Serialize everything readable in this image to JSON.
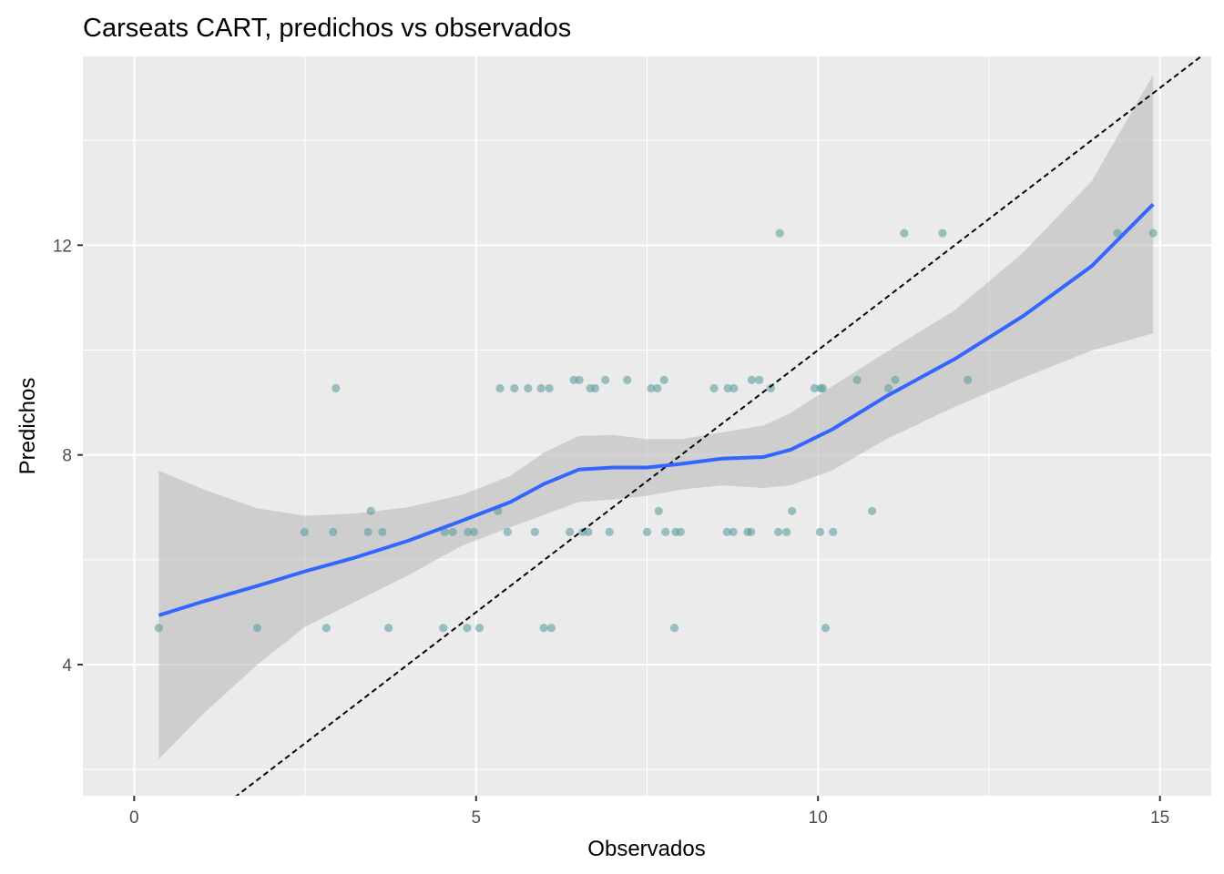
{
  "chart_data": {
    "type": "scatter",
    "title": "Carseats CART, predichos vs observados",
    "xlabel": "Observados",
    "ylabel": "Predichos",
    "xlim": [
      -0.75,
      15.75
    ],
    "ylim": [
      1.5,
      15.6
    ],
    "x_ticks": [
      0,
      5,
      10,
      15
    ],
    "y_ticks": [
      4,
      8,
      12
    ],
    "grid": true,
    "colors": {
      "panel": "#ebebeb",
      "grid": "#ffffff",
      "points": "#5f9ea0",
      "smooth_line": "#3366ff",
      "ribbon": "#bdbdbd",
      "reference_line": "#000000"
    },
    "points": [
      {
        "x": 0.36,
        "y": 4.7
      },
      {
        "x": 1.8,
        "y": 4.7
      },
      {
        "x": 2.81,
        "y": 4.7
      },
      {
        "x": 3.72,
        "y": 4.7
      },
      {
        "x": 4.52,
        "y": 4.7
      },
      {
        "x": 4.87,
        "y": 4.7
      },
      {
        "x": 5.05,
        "y": 4.7
      },
      {
        "x": 5.99,
        "y": 4.7
      },
      {
        "x": 6.1,
        "y": 4.7
      },
      {
        "x": 7.9,
        "y": 4.7
      },
      {
        "x": 10.11,
        "y": 4.7
      },
      {
        "x": 2.49,
        "y": 6.53
      },
      {
        "x": 2.91,
        "y": 6.53
      },
      {
        "x": 3.42,
        "y": 6.53
      },
      {
        "x": 3.63,
        "y": 6.53
      },
      {
        "x": 4.54,
        "y": 6.53
      },
      {
        "x": 4.66,
        "y": 6.53
      },
      {
        "x": 4.88,
        "y": 6.53
      },
      {
        "x": 4.97,
        "y": 6.53
      },
      {
        "x": 5.46,
        "y": 6.53
      },
      {
        "x": 5.86,
        "y": 6.53
      },
      {
        "x": 6.37,
        "y": 6.53
      },
      {
        "x": 6.56,
        "y": 6.53
      },
      {
        "x": 6.64,
        "y": 6.53
      },
      {
        "x": 6.95,
        "y": 6.53
      },
      {
        "x": 7.5,
        "y": 6.53
      },
      {
        "x": 7.77,
        "y": 6.53
      },
      {
        "x": 7.92,
        "y": 6.53
      },
      {
        "x": 7.99,
        "y": 6.53
      },
      {
        "x": 8.67,
        "y": 6.53
      },
      {
        "x": 8.76,
        "y": 6.53
      },
      {
        "x": 8.97,
        "y": 6.53
      },
      {
        "x": 9.02,
        "y": 6.53
      },
      {
        "x": 9.42,
        "y": 6.53
      },
      {
        "x": 9.54,
        "y": 6.53
      },
      {
        "x": 10.03,
        "y": 6.53
      },
      {
        "x": 10.22,
        "y": 6.53
      },
      {
        "x": 3.46,
        "y": 6.93
      },
      {
        "x": 5.32,
        "y": 6.93
      },
      {
        "x": 7.67,
        "y": 6.93
      },
      {
        "x": 9.62,
        "y": 6.93
      },
      {
        "x": 10.79,
        "y": 6.93
      },
      {
        "x": 2.95,
        "y": 9.27
      },
      {
        "x": 5.35,
        "y": 9.27
      },
      {
        "x": 5.56,
        "y": 9.27
      },
      {
        "x": 5.76,
        "y": 9.27
      },
      {
        "x": 5.95,
        "y": 9.27
      },
      {
        "x": 6.07,
        "y": 9.27
      },
      {
        "x": 6.67,
        "y": 9.27
      },
      {
        "x": 6.74,
        "y": 9.27
      },
      {
        "x": 7.56,
        "y": 9.27
      },
      {
        "x": 7.65,
        "y": 9.27
      },
      {
        "x": 8.48,
        "y": 9.27
      },
      {
        "x": 8.68,
        "y": 9.27
      },
      {
        "x": 8.77,
        "y": 9.27
      },
      {
        "x": 9.31,
        "y": 9.27
      },
      {
        "x": 9.95,
        "y": 9.27
      },
      {
        "x": 10.04,
        "y": 9.27
      },
      {
        "x": 10.07,
        "y": 9.27
      },
      {
        "x": 11.03,
        "y": 9.27
      },
      {
        "x": 6.43,
        "y": 9.43
      },
      {
        "x": 6.51,
        "y": 9.43
      },
      {
        "x": 6.89,
        "y": 9.43
      },
      {
        "x": 7.21,
        "y": 9.43
      },
      {
        "x": 7.75,
        "y": 9.43
      },
      {
        "x": 9.03,
        "y": 9.43
      },
      {
        "x": 9.14,
        "y": 9.43
      },
      {
        "x": 10.57,
        "y": 9.43
      },
      {
        "x": 11.13,
        "y": 9.43
      },
      {
        "x": 12.19,
        "y": 9.43
      },
      {
        "x": 9.44,
        "y": 12.23
      },
      {
        "x": 11.26,
        "y": 12.23
      },
      {
        "x": 11.82,
        "y": 12.23
      },
      {
        "x": 14.38,
        "y": 12.23
      },
      {
        "x": 14.9,
        "y": 12.23
      }
    ],
    "smooth_line": [
      {
        "x": 0.36,
        "y": 4.94
      },
      {
        "x": 1.0,
        "y": 5.2
      },
      {
        "x": 1.8,
        "y": 5.5
      },
      {
        "x": 2.5,
        "y": 5.78
      },
      {
        "x": 3.2,
        "y": 6.03
      },
      {
        "x": 4.0,
        "y": 6.36
      },
      {
        "x": 4.8,
        "y": 6.75
      },
      {
        "x": 5.5,
        "y": 7.1
      },
      {
        "x": 6.0,
        "y": 7.45
      },
      {
        "x": 6.5,
        "y": 7.72
      },
      {
        "x": 7.0,
        "y": 7.76
      },
      {
        "x": 7.5,
        "y": 7.76
      },
      {
        "x": 8.0,
        "y": 7.83
      },
      {
        "x": 8.6,
        "y": 7.93
      },
      {
        "x": 9.2,
        "y": 7.96
      },
      {
        "x": 9.6,
        "y": 8.1
      },
      {
        "x": 10.2,
        "y": 8.48
      },
      {
        "x": 11.0,
        "y": 9.12
      },
      {
        "x": 12.0,
        "y": 9.83
      },
      {
        "x": 13.0,
        "y": 10.65
      },
      {
        "x": 14.0,
        "y": 11.6
      },
      {
        "x": 14.9,
        "y": 12.78
      }
    ],
    "ribbon_upper": [
      {
        "x": 0.36,
        "y": 7.7
      },
      {
        "x": 1.0,
        "y": 7.35
      },
      {
        "x": 1.8,
        "y": 6.98
      },
      {
        "x": 2.5,
        "y": 6.84
      },
      {
        "x": 3.2,
        "y": 6.88
      },
      {
        "x": 4.0,
        "y": 7.0
      },
      {
        "x": 4.8,
        "y": 7.24
      },
      {
        "x": 5.5,
        "y": 7.6
      },
      {
        "x": 6.0,
        "y": 8.05
      },
      {
        "x": 6.5,
        "y": 8.36
      },
      {
        "x": 7.0,
        "y": 8.38
      },
      {
        "x": 7.5,
        "y": 8.3
      },
      {
        "x": 8.0,
        "y": 8.3
      },
      {
        "x": 8.6,
        "y": 8.43
      },
      {
        "x": 9.2,
        "y": 8.56
      },
      {
        "x": 9.6,
        "y": 8.8
      },
      {
        "x": 10.2,
        "y": 9.3
      },
      {
        "x": 11.0,
        "y": 9.96
      },
      {
        "x": 12.0,
        "y": 10.76
      },
      {
        "x": 13.0,
        "y": 11.86
      },
      {
        "x": 14.0,
        "y": 13.22
      },
      {
        "x": 14.9,
        "y": 15.25
      }
    ],
    "ribbon_lower": [
      {
        "x": 0.36,
        "y": 2.2
      },
      {
        "x": 1.0,
        "y": 3.05
      },
      {
        "x": 1.8,
        "y": 4.0
      },
      {
        "x": 2.5,
        "y": 4.72
      },
      {
        "x": 3.2,
        "y": 5.18
      },
      {
        "x": 4.0,
        "y": 5.7
      },
      {
        "x": 4.8,
        "y": 6.27
      },
      {
        "x": 5.5,
        "y": 6.62
      },
      {
        "x": 6.0,
        "y": 6.86
      },
      {
        "x": 6.5,
        "y": 7.1
      },
      {
        "x": 7.0,
        "y": 7.15
      },
      {
        "x": 7.5,
        "y": 7.22
      },
      {
        "x": 8.0,
        "y": 7.34
      },
      {
        "x": 8.6,
        "y": 7.42
      },
      {
        "x": 9.2,
        "y": 7.37
      },
      {
        "x": 9.6,
        "y": 7.42
      },
      {
        "x": 10.2,
        "y": 7.7
      },
      {
        "x": 11.0,
        "y": 8.3
      },
      {
        "x": 12.0,
        "y": 8.92
      },
      {
        "x": 13.0,
        "y": 9.47
      },
      {
        "x": 14.0,
        "y": 9.99
      },
      {
        "x": 14.9,
        "y": 10.32
      }
    ],
    "reference_line": {
      "intercept": 0,
      "slope": 1
    }
  }
}
